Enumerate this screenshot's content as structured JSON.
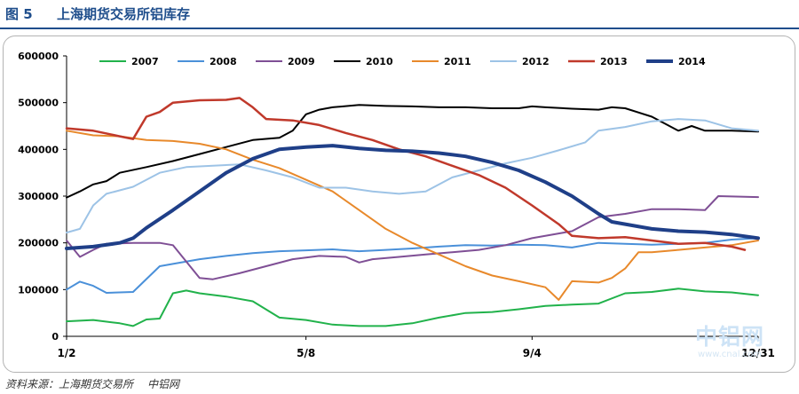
{
  "figure": {
    "number": "图 5",
    "title": "上海期货交易所铝库存",
    "source": "资料来源：上海期货交易所",
    "source_credit": "中铝网"
  },
  "watermark": {
    "brand": "中铝网",
    "url": "www.cnal.com"
  },
  "chart_data": {
    "type": "line",
    "title": "",
    "xlabel": "",
    "ylabel": "",
    "x_domain": [
      0,
      52
    ],
    "x_ticks": [
      {
        "label": "1/2",
        "x": 0
      },
      {
        "label": "5/8",
        "x": 18
      },
      {
        "label": "9/4",
        "x": 35
      },
      {
        "label": "12/31",
        "x": 52
      }
    ],
    "ylim": [
      0,
      600000
    ],
    "y_ticks": [
      0,
      100000,
      200000,
      300000,
      400000,
      500000,
      600000
    ],
    "grid": false,
    "legend_position": "top",
    "series": [
      {
        "name": "2007",
        "color": "#21b24b",
        "width": 2,
        "points": [
          [
            0,
            32000
          ],
          [
            2,
            35000
          ],
          [
            4,
            28000
          ],
          [
            5,
            22000
          ],
          [
            6,
            36000
          ],
          [
            7,
            38000
          ],
          [
            8,
            92000
          ],
          [
            9,
            98000
          ],
          [
            10,
            92000
          ],
          [
            12,
            85000
          ],
          [
            14,
            75000
          ],
          [
            16,
            40000
          ],
          [
            18,
            35000
          ],
          [
            20,
            25000
          ],
          [
            22,
            22000
          ],
          [
            24,
            22000
          ],
          [
            26,
            28000
          ],
          [
            28,
            40000
          ],
          [
            30,
            50000
          ],
          [
            32,
            52000
          ],
          [
            34,
            58000
          ],
          [
            36,
            65000
          ],
          [
            38,
            68000
          ],
          [
            40,
            70000
          ],
          [
            42,
            92000
          ],
          [
            44,
            95000
          ],
          [
            46,
            102000
          ],
          [
            48,
            96000
          ],
          [
            50,
            94000
          ],
          [
            52,
            88000
          ]
        ]
      },
      {
        "name": "2008",
        "color": "#4a90d9",
        "width": 2,
        "points": [
          [
            0,
            100000
          ],
          [
            1,
            117000
          ],
          [
            2,
            108000
          ],
          [
            3,
            93000
          ],
          [
            5,
            95000
          ],
          [
            7,
            150000
          ],
          [
            8,
            155000
          ],
          [
            10,
            165000
          ],
          [
            12,
            172000
          ],
          [
            14,
            178000
          ],
          [
            16,
            182000
          ],
          [
            18,
            184000
          ],
          [
            20,
            186000
          ],
          [
            22,
            182000
          ],
          [
            24,
            185000
          ],
          [
            26,
            188000
          ],
          [
            28,
            192000
          ],
          [
            30,
            195000
          ],
          [
            32,
            194000
          ],
          [
            34,
            196000
          ],
          [
            36,
            195000
          ],
          [
            38,
            190000
          ],
          [
            40,
            200000
          ],
          [
            42,
            198000
          ],
          [
            44,
            196000
          ],
          [
            46,
            198000
          ],
          [
            48,
            200000
          ],
          [
            50,
            207000
          ],
          [
            52,
            210000
          ]
        ]
      },
      {
        "name": "2009",
        "color": "#7f4f95",
        "width": 2,
        "points": [
          [
            0,
            205000
          ],
          [
            1,
            170000
          ],
          [
            2,
            185000
          ],
          [
            3,
            198000
          ],
          [
            5,
            200000
          ],
          [
            7,
            200000
          ],
          [
            8,
            195000
          ],
          [
            9,
            160000
          ],
          [
            10,
            125000
          ],
          [
            11,
            122000
          ],
          [
            13,
            135000
          ],
          [
            15,
            150000
          ],
          [
            17,
            165000
          ],
          [
            19,
            172000
          ],
          [
            21,
            170000
          ],
          [
            22,
            158000
          ],
          [
            23,
            165000
          ],
          [
            25,
            170000
          ],
          [
            27,
            175000
          ],
          [
            29,
            180000
          ],
          [
            31,
            185000
          ],
          [
            33,
            195000
          ],
          [
            35,
            210000
          ],
          [
            37,
            220000
          ],
          [
            38,
            225000
          ],
          [
            40,
            255000
          ],
          [
            42,
            262000
          ],
          [
            44,
            272000
          ],
          [
            46,
            272000
          ],
          [
            48,
            270000
          ],
          [
            49,
            300000
          ],
          [
            52,
            298000
          ]
        ]
      },
      {
        "name": "2010",
        "color": "#000000",
        "width": 2,
        "points": [
          [
            0,
            297000
          ],
          [
            1,
            310000
          ],
          [
            2,
            325000
          ],
          [
            3,
            332000
          ],
          [
            4,
            350000
          ],
          [
            6,
            362000
          ],
          [
            8,
            375000
          ],
          [
            10,
            390000
          ],
          [
            12,
            405000
          ],
          [
            14,
            420000
          ],
          [
            16,
            425000
          ],
          [
            17,
            440000
          ],
          [
            18,
            475000
          ],
          [
            19,
            485000
          ],
          [
            20,
            490000
          ],
          [
            22,
            495000
          ],
          [
            24,
            493000
          ],
          [
            26,
            492000
          ],
          [
            28,
            490000
          ],
          [
            30,
            490000
          ],
          [
            32,
            488000
          ],
          [
            34,
            488000
          ],
          [
            35,
            492000
          ],
          [
            36,
            490000
          ],
          [
            38,
            487000
          ],
          [
            40,
            485000
          ],
          [
            41,
            490000
          ],
          [
            42,
            488000
          ],
          [
            44,
            470000
          ],
          [
            45,
            455000
          ],
          [
            46,
            440000
          ],
          [
            47,
            450000
          ],
          [
            48,
            440000
          ],
          [
            50,
            440000
          ],
          [
            52,
            438000
          ]
        ]
      },
      {
        "name": "2011",
        "color": "#e8892b",
        "width": 2,
        "points": [
          [
            0,
            440000
          ],
          [
            2,
            430000
          ],
          [
            4,
            428000
          ],
          [
            6,
            420000
          ],
          [
            8,
            418000
          ],
          [
            10,
            412000
          ],
          [
            12,
            400000
          ],
          [
            14,
            378000
          ],
          [
            16,
            360000
          ],
          [
            18,
            335000
          ],
          [
            20,
            310000
          ],
          [
            22,
            270000
          ],
          [
            24,
            230000
          ],
          [
            26,
            200000
          ],
          [
            28,
            175000
          ],
          [
            30,
            150000
          ],
          [
            32,
            130000
          ],
          [
            34,
            118000
          ],
          [
            36,
            105000
          ],
          [
            37,
            78000
          ],
          [
            38,
            118000
          ],
          [
            40,
            115000
          ],
          [
            41,
            125000
          ],
          [
            42,
            145000
          ],
          [
            43,
            180000
          ],
          [
            44,
            180000
          ],
          [
            46,
            185000
          ],
          [
            48,
            190000
          ],
          [
            50,
            195000
          ],
          [
            52,
            205000
          ]
        ]
      },
      {
        "name": "2012",
        "color": "#9dc3e6",
        "width": 2,
        "points": [
          [
            0,
            222000
          ],
          [
            1,
            230000
          ],
          [
            2,
            280000
          ],
          [
            3,
            305000
          ],
          [
            5,
            320000
          ],
          [
            7,
            350000
          ],
          [
            9,
            362000
          ],
          [
            11,
            365000
          ],
          [
            13,
            368000
          ],
          [
            15,
            355000
          ],
          [
            17,
            340000
          ],
          [
            19,
            318000
          ],
          [
            21,
            318000
          ],
          [
            23,
            310000
          ],
          [
            25,
            305000
          ],
          [
            27,
            310000
          ],
          [
            29,
            340000
          ],
          [
            31,
            355000
          ],
          [
            33,
            370000
          ],
          [
            35,
            382000
          ],
          [
            37,
            398000
          ],
          [
            39,
            415000
          ],
          [
            40,
            440000
          ],
          [
            42,
            448000
          ],
          [
            44,
            460000
          ],
          [
            46,
            465000
          ],
          [
            48,
            462000
          ],
          [
            50,
            445000
          ],
          [
            52,
            440000
          ]
        ]
      },
      {
        "name": "2013",
        "color": "#c0392b",
        "width": 2.5,
        "points": [
          [
            0,
            445000
          ],
          [
            2,
            440000
          ],
          [
            4,
            428000
          ],
          [
            5,
            422000
          ],
          [
            6,
            470000
          ],
          [
            7,
            480000
          ],
          [
            8,
            500000
          ],
          [
            10,
            505000
          ],
          [
            12,
            506000
          ],
          [
            13,
            510000
          ],
          [
            14,
            490000
          ],
          [
            15,
            465000
          ],
          [
            17,
            462000
          ],
          [
            19,
            452000
          ],
          [
            21,
            435000
          ],
          [
            23,
            420000
          ],
          [
            25,
            400000
          ],
          [
            27,
            385000
          ],
          [
            29,
            365000
          ],
          [
            31,
            345000
          ],
          [
            33,
            318000
          ],
          [
            35,
            280000
          ],
          [
            37,
            240000
          ],
          [
            38,
            215000
          ],
          [
            40,
            210000
          ],
          [
            42,
            212000
          ],
          [
            44,
            205000
          ],
          [
            46,
            198000
          ],
          [
            48,
            200000
          ],
          [
            50,
            192000
          ],
          [
            51,
            185000
          ]
        ]
      },
      {
        "name": "2014",
        "color": "#1f3f88",
        "width": 4,
        "points": [
          [
            0,
            188000
          ],
          [
            2,
            192000
          ],
          [
            4,
            200000
          ],
          [
            5,
            210000
          ],
          [
            6,
            232000
          ],
          [
            8,
            270000
          ],
          [
            10,
            310000
          ],
          [
            12,
            350000
          ],
          [
            14,
            380000
          ],
          [
            16,
            400000
          ],
          [
            18,
            405000
          ],
          [
            20,
            408000
          ],
          [
            22,
            402000
          ],
          [
            24,
            398000
          ],
          [
            26,
            396000
          ],
          [
            28,
            392000
          ],
          [
            30,
            385000
          ],
          [
            32,
            372000
          ],
          [
            34,
            355000
          ],
          [
            36,
            330000
          ],
          [
            38,
            300000
          ],
          [
            40,
            262000
          ],
          [
            41,
            245000
          ],
          [
            42,
            240000
          ],
          [
            44,
            230000
          ],
          [
            46,
            225000
          ],
          [
            48,
            223000
          ],
          [
            50,
            218000
          ],
          [
            52,
            210000
          ]
        ]
      }
    ]
  }
}
